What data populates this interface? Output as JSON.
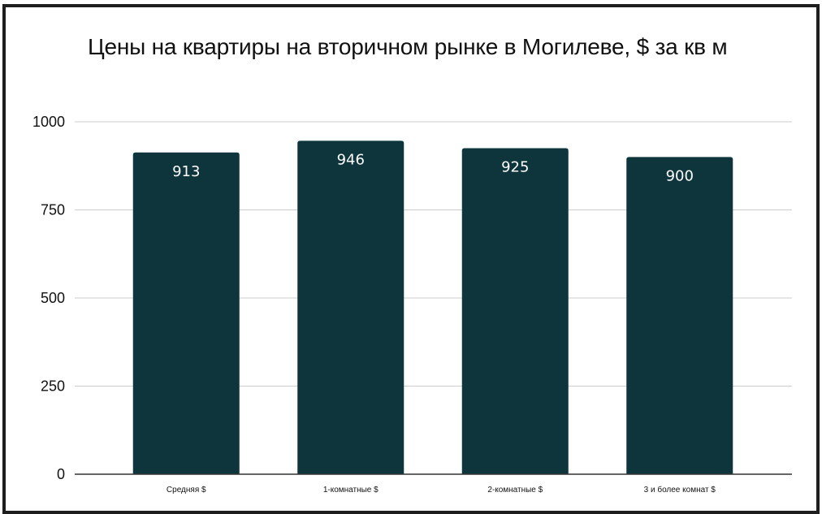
{
  "chart_data": {
    "type": "bar",
    "title": "Цены на квартиры на вторичном рынке в Могилеве, $ за кв м",
    "categories": [
      "Средняя $",
      "1-комнатные $",
      "2-комнатные $",
      "3 и более комнат $"
    ],
    "values": [
      913,
      946,
      925,
      900
    ],
    "data_labels": [
      "913",
      "946",
      "925",
      "900"
    ],
    "xlabel": "",
    "ylabel": "",
    "ylim": [
      0,
      1000
    ],
    "yticks": [
      0,
      250,
      500,
      750,
      1000
    ],
    "ytick_labels": [
      "0",
      "250",
      "500",
      "750",
      "1000"
    ],
    "grid": true,
    "legend": "none",
    "colors": {
      "bar": "#0e343c",
      "grid": "#cccccc",
      "axis": "#333333",
      "data_label": "#ffffff"
    }
  }
}
